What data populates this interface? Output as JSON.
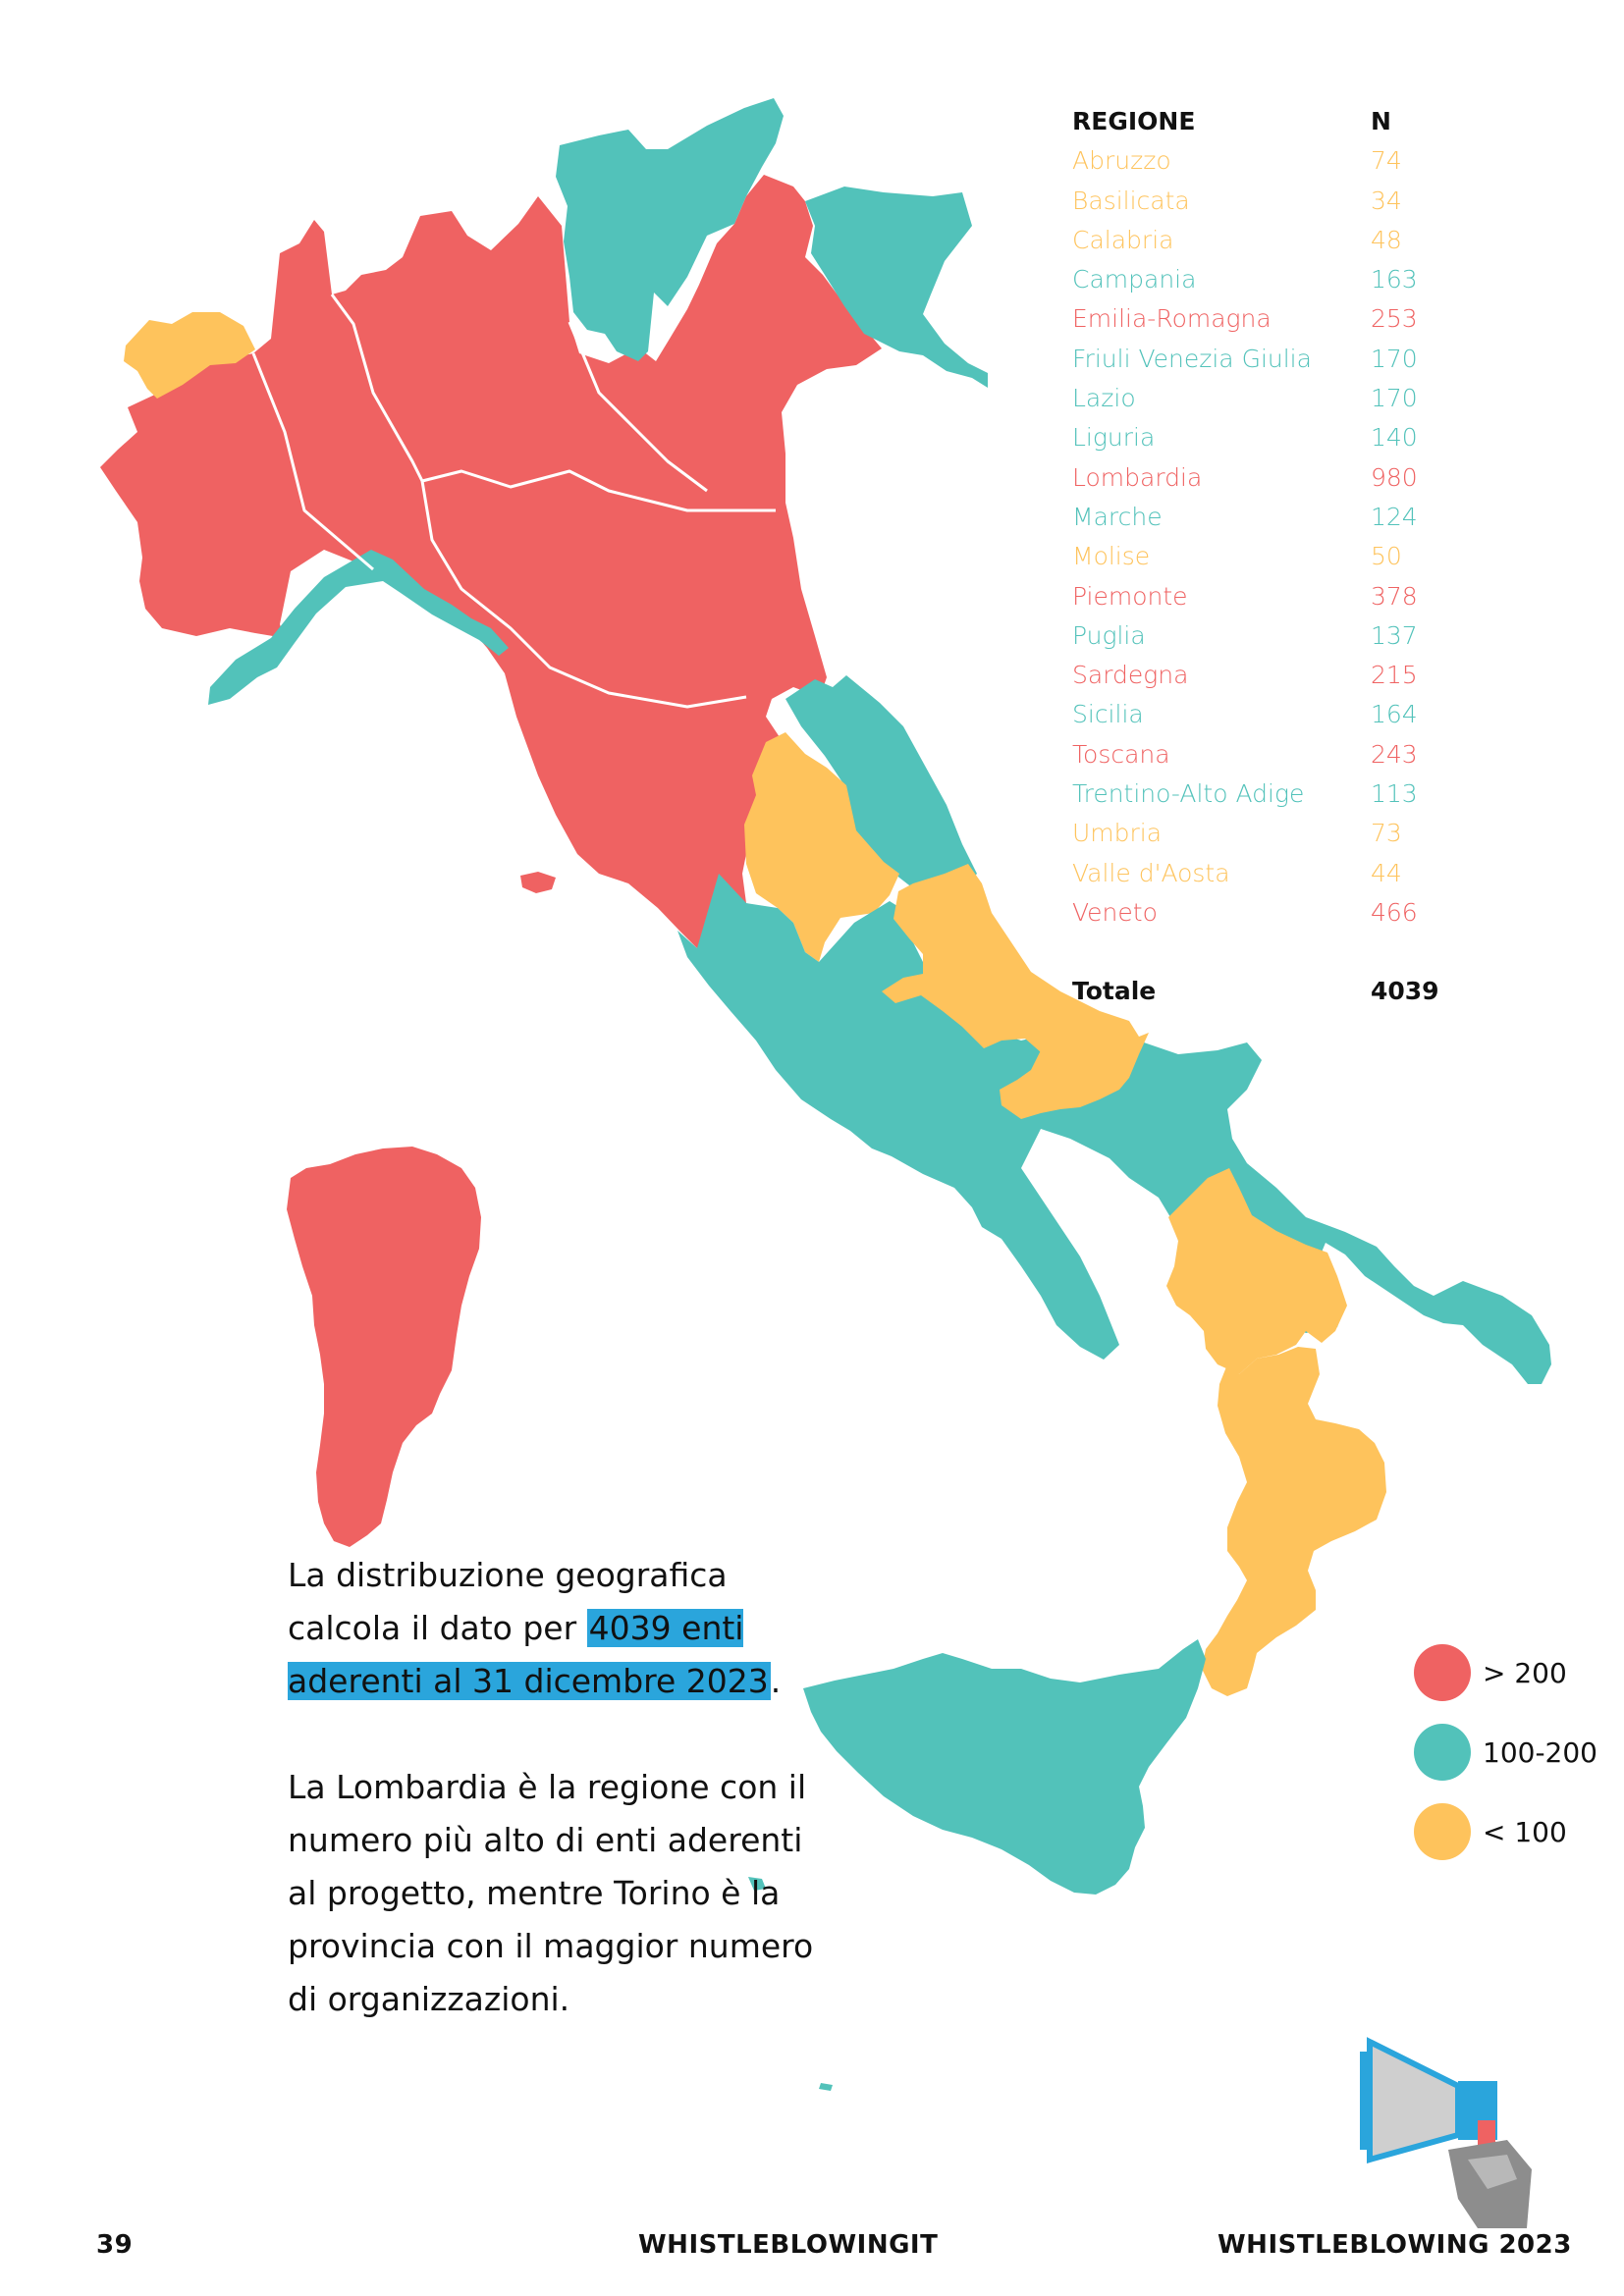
{
  "colors": {
    "red": "#ef6262",
    "teal": "#52c2ba",
    "yellow": "#fec35c",
    "highlight": "#2aa5dc"
  },
  "table": {
    "header_region": "REGIONE",
    "header_n": "N",
    "rows": [
      {
        "name": "Abruzzo",
        "n": "74",
        "class": "yellow"
      },
      {
        "name": "Basilicata",
        "n": "34",
        "class": "yellow"
      },
      {
        "name": "Calabria",
        "n": "48",
        "class": "yellow"
      },
      {
        "name": "Campania",
        "n": "163",
        "class": "teal"
      },
      {
        "name": "Emilia-Romagna",
        "n": "253",
        "class": "red"
      },
      {
        "name": "Friuli Venezia Giulia",
        "n": "170",
        "class": "teal"
      },
      {
        "name": "Lazio",
        "n": "170",
        "class": "teal"
      },
      {
        "name": "Liguria",
        "n": "140",
        "class": "teal"
      },
      {
        "name": "Lombardia",
        "n": "980",
        "class": "red"
      },
      {
        "name": "Marche",
        "n": "124",
        "class": "teal"
      },
      {
        "name": "Molise",
        "n": "50",
        "class": "yellow"
      },
      {
        "name": "Piemonte",
        "n": "378",
        "class": "red"
      },
      {
        "name": "Puglia",
        "n": "137",
        "class": "teal"
      },
      {
        "name": "Sardegna",
        "n": "215",
        "class": "red"
      },
      {
        "name": "Sicilia",
        "n": "164",
        "class": "teal"
      },
      {
        "name": "Toscana",
        "n": "243",
        "class": "red"
      },
      {
        "name": "Trentino-Alto Adige",
        "n": "113",
        "class": "teal"
      },
      {
        "name": "Umbria",
        "n": "73",
        "class": "yellow"
      },
      {
        "name": "Valle d'Aosta",
        "n": "44",
        "class": "yellow"
      },
      {
        "name": "Veneto",
        "n": "466",
        "class": "red"
      }
    ],
    "total_label": "Totale",
    "total_value": "4039"
  },
  "legend": [
    {
      "label": "> 200",
      "class": "red"
    },
    {
      "label": "100-200",
      "class": "teal"
    },
    {
      "label": "< 100",
      "class": "yellow"
    }
  ],
  "description": {
    "p1_before": "La distribuzione geografica calcola il dato per ",
    "p1_highlight": "4039 enti aderenti al 31 dicembre 2023",
    "p1_after": ".",
    "p2": "La Lombardia è la regione con il numero più alto di enti aderenti al progetto, mentre Torino è la provincia con il maggior numero di organizzazioni."
  },
  "footer": {
    "page_number": "39",
    "center": "WHISTLEBLOWINGIT",
    "right": "WHISTLEBLOWING 2023"
  },
  "megaphone": {
    "icon": "megaphone-icon"
  }
}
